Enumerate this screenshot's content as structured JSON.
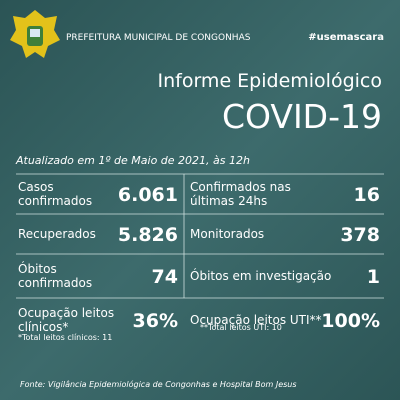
{
  "header": {
    "organization": "PREFEITURA MUNICIPAL DE CONGONHAS",
    "hashtag": "#usemascara"
  },
  "title": {
    "line1": "Informe Epidemiológico",
    "line2": "COVID-19"
  },
  "updated": "Atualizado em 1º de Maio de 2021, às 12h",
  "table": {
    "rows": [
      [
        {
          "label": [
            "Casos",
            "confirmados"
          ],
          "value": "6.061"
        },
        {
          "label": [
            "Confirmados nas",
            "últimas 24hs"
          ],
          "value": "16"
        }
      ],
      [
        {
          "label": [
            "Recuperados"
          ],
          "value": "5.826"
        },
        {
          "label": [
            "Monitorados"
          ],
          "value": "378"
        }
      ],
      [
        {
          "label": [
            "Óbitos",
            "confirmados"
          ],
          "value": "74"
        },
        {
          "label": [
            "Óbitos em investigação"
          ],
          "value": "1"
        }
      ],
      [
        {
          "label": [
            "Ocupação leitos",
            "clínicos*"
          ],
          "value": "36%",
          "note": "*Total leitos clínicos: 11"
        },
        {
          "label": [
            "Ocupação leitos UTI**"
          ],
          "value": "100%",
          "note": "**Total leitos UTI: 10"
        }
      ]
    ]
  },
  "footer": "Fonte: Vigilância Epidemiológica de Congonhas e Hospital Bom Jesus"
}
